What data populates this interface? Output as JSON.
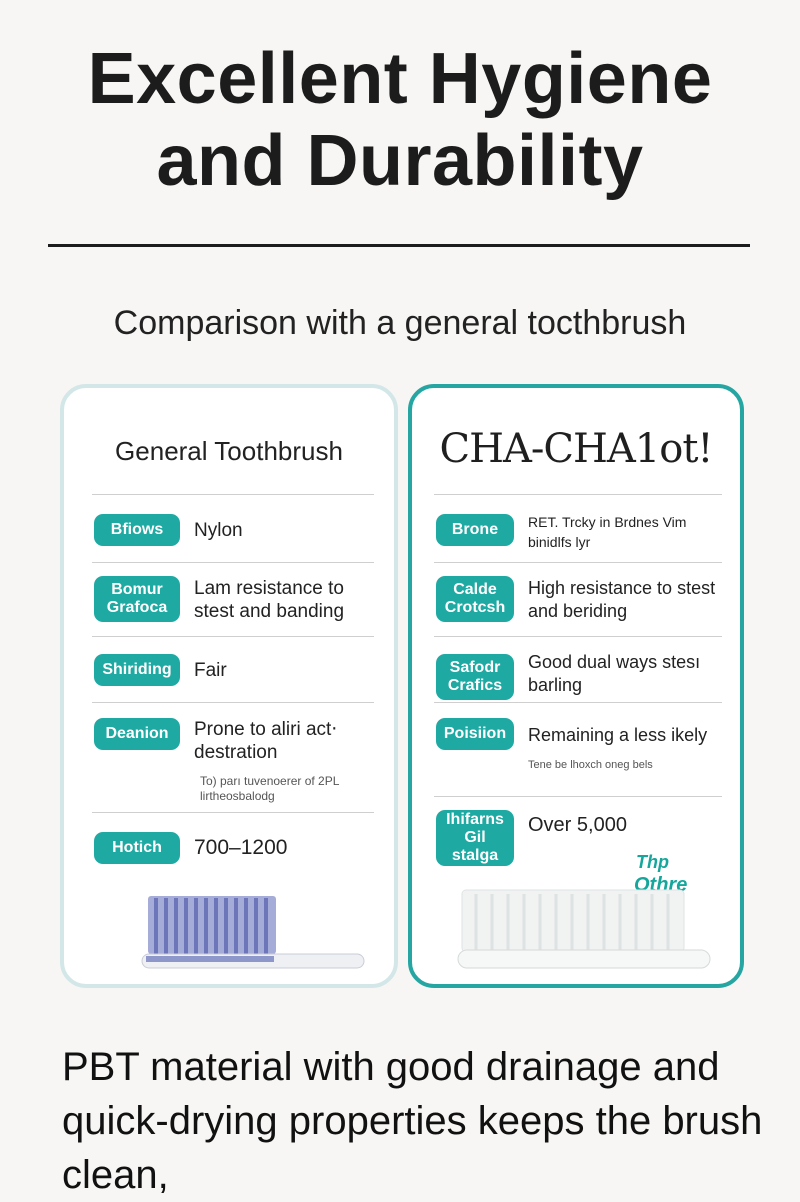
{
  "headline": {
    "line1": "Excellent Hygiene",
    "line2": "and Durability"
  },
  "subtitle": "Comparison with a general tocthbrush",
  "general": {
    "title": "General Toothbrush",
    "rows": [
      {
        "label": "Bfiows",
        "value": "Nylon"
      },
      {
        "label": "Bomur Grafoca",
        "value": "Lam resistance to stest and banding"
      },
      {
        "label": "Shiriding",
        "value": "Fair"
      },
      {
        "label": "Deanion",
        "value": "Prone to aliri act‧destration",
        "note": "To) parı tuvenoerer of 2PL lirtheosbalodg"
      },
      {
        "label": "Hotich",
        "value": "700–1200"
      }
    ]
  },
  "chacha": {
    "title": "CHA-CHA1ot!",
    "rows": [
      {
        "label": "Brone",
        "value": "RET. Trcky in Brdnes Vim binidlfs lyr"
      },
      {
        "label": "Calde Crotcsh",
        "value": "High resistance to stest and beriding"
      },
      {
        "label": "Safodr Crafics",
        "value": "Good dual ways stesı barling"
      },
      {
        "label": "Poisiion",
        "value": "Remaining a less ikely",
        "note": "Tene be lhoxch oneg bels"
      },
      {
        "label": "Ihifarns Gil stalga",
        "value": "Over 5,000"
      }
    ],
    "logo_top": "Thp",
    "logo_word": "Othre"
  },
  "bottom_text": "PBT material with good drainage and quick-drying properties keeps the brush clean,",
  "colors": {
    "teal": "#1fa9a3",
    "left_border": "#d3e7e8",
    "right_border": "#26a6a2",
    "bristle_blue": "#8e97c9"
  }
}
